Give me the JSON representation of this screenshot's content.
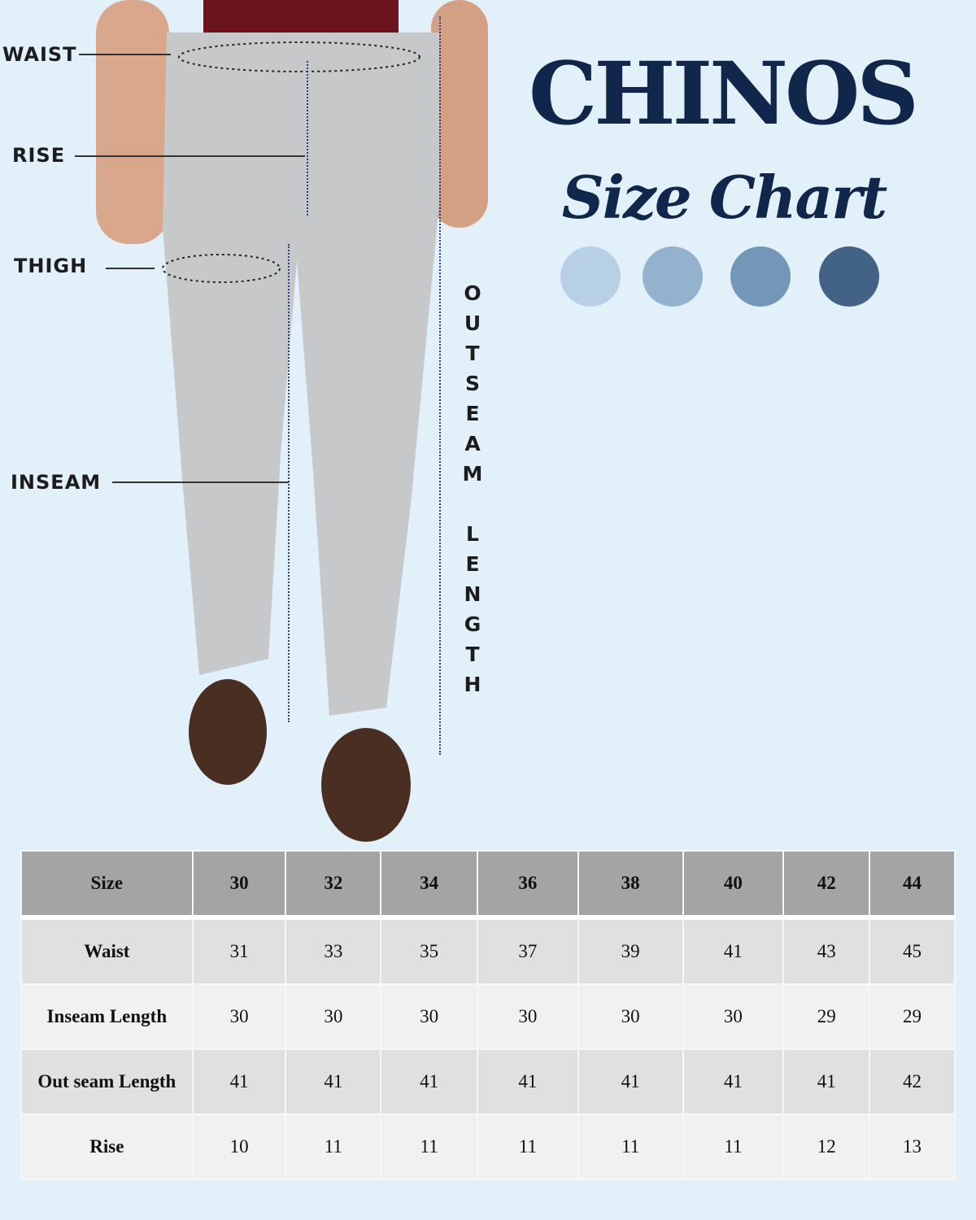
{
  "header": {
    "title": "CHINOS",
    "subtitle": "Size Chart"
  },
  "swatches": [
    "#b8d0e5",
    "#93b2cd",
    "#7397b8",
    "#436386"
  ],
  "measure_labels": {
    "waist": "WAIST",
    "rise": "RISE",
    "thigh": "THIGH",
    "inseam": "INSEAM",
    "outseam": "OUTSEAM",
    "length": "LENGTH"
  },
  "table": {
    "columns": [
      "Size",
      "30",
      "32",
      "34",
      "36",
      "38",
      "40",
      "42",
      "44"
    ],
    "rows": [
      {
        "label": "Waist",
        "values": [
          "31",
          "33",
          "35",
          "37",
          "39",
          "41",
          "43",
          "45"
        ]
      },
      {
        "label": "Inseam Length",
        "values": [
          "30",
          "30",
          "30",
          "30",
          "30",
          "30",
          "29",
          "29"
        ]
      },
      {
        "label": "Out seam Length",
        "values": [
          "41",
          "41",
          "41",
          "41",
          "41",
          "41",
          "41",
          "42"
        ]
      },
      {
        "label": "Rise",
        "values": [
          "10",
          "11",
          "11",
          "11",
          "11",
          "11",
          "12",
          "13"
        ]
      }
    ]
  }
}
